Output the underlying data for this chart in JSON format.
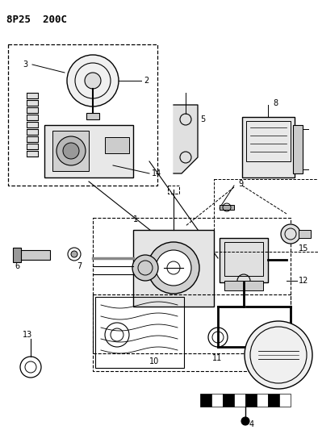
{
  "title": "8P25  200C",
  "bg_color": "#ffffff",
  "line_color": "#000000",
  "fig_width": 3.94,
  "fig_height": 5.33,
  "dpi": 100
}
